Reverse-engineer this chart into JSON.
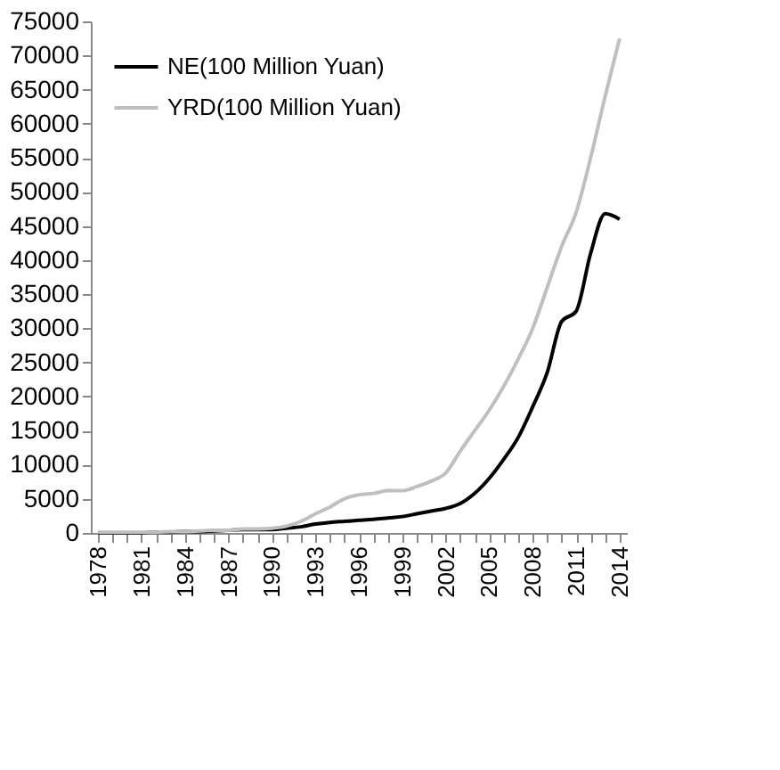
{
  "chart_data": {
    "type": "line",
    "categories": [
      "1978",
      null,
      null,
      "1981",
      null,
      null,
      "1984",
      null,
      null,
      "1987",
      null,
      null,
      "1990",
      null,
      null,
      "1993",
      null,
      null,
      "1996",
      null,
      null,
      "1999",
      null,
      null,
      "2002",
      null,
      null,
      "2005",
      null,
      null,
      "2008",
      null,
      null,
      "2011",
      null,
      null,
      "2014"
    ],
    "series": [
      {
        "name": "NE(100 Million Yuan)",
        "color": "#000000",
        "values": [
          0,
          0,
          0,
          0,
          100,
          100,
          200,
          200,
          300,
          400,
          500,
          500,
          500,
          700,
          900,
          1300,
          1550,
          1700,
          1850,
          2000,
          2200,
          2400,
          2800,
          3200,
          3600,
          4300,
          5800,
          8000,
          10800,
          14000,
          18500,
          23500,
          31000,
          32500,
          41000,
          46800,
          46000
        ]
      },
      {
        "name": "YRD(100 Million Yuan)",
        "color": "#bfbfbf",
        "values": [
          100,
          100,
          100,
          100,
          100,
          200,
          200,
          300,
          400,
          400,
          600,
          600,
          700,
          1000,
          1700,
          2800,
          3800,
          5000,
          5600,
          5800,
          6200,
          6200,
          6800,
          7600,
          8800,
          12000,
          15000,
          18000,
          21500,
          25500,
          30000,
          36000,
          42000,
          47000,
          55000,
          64000,
          72500
        ]
      }
    ],
    "ylim": [
      0,
      75000
    ],
    "yticks": [
      0,
      5000,
      10000,
      15000,
      20000,
      25000,
      30000,
      35000,
      40000,
      45000,
      50000,
      55000,
      60000,
      65000,
      70000,
      75000
    ],
    "grid": false,
    "legend": "top left",
    "line_style": "solid",
    "marker": "none"
  }
}
